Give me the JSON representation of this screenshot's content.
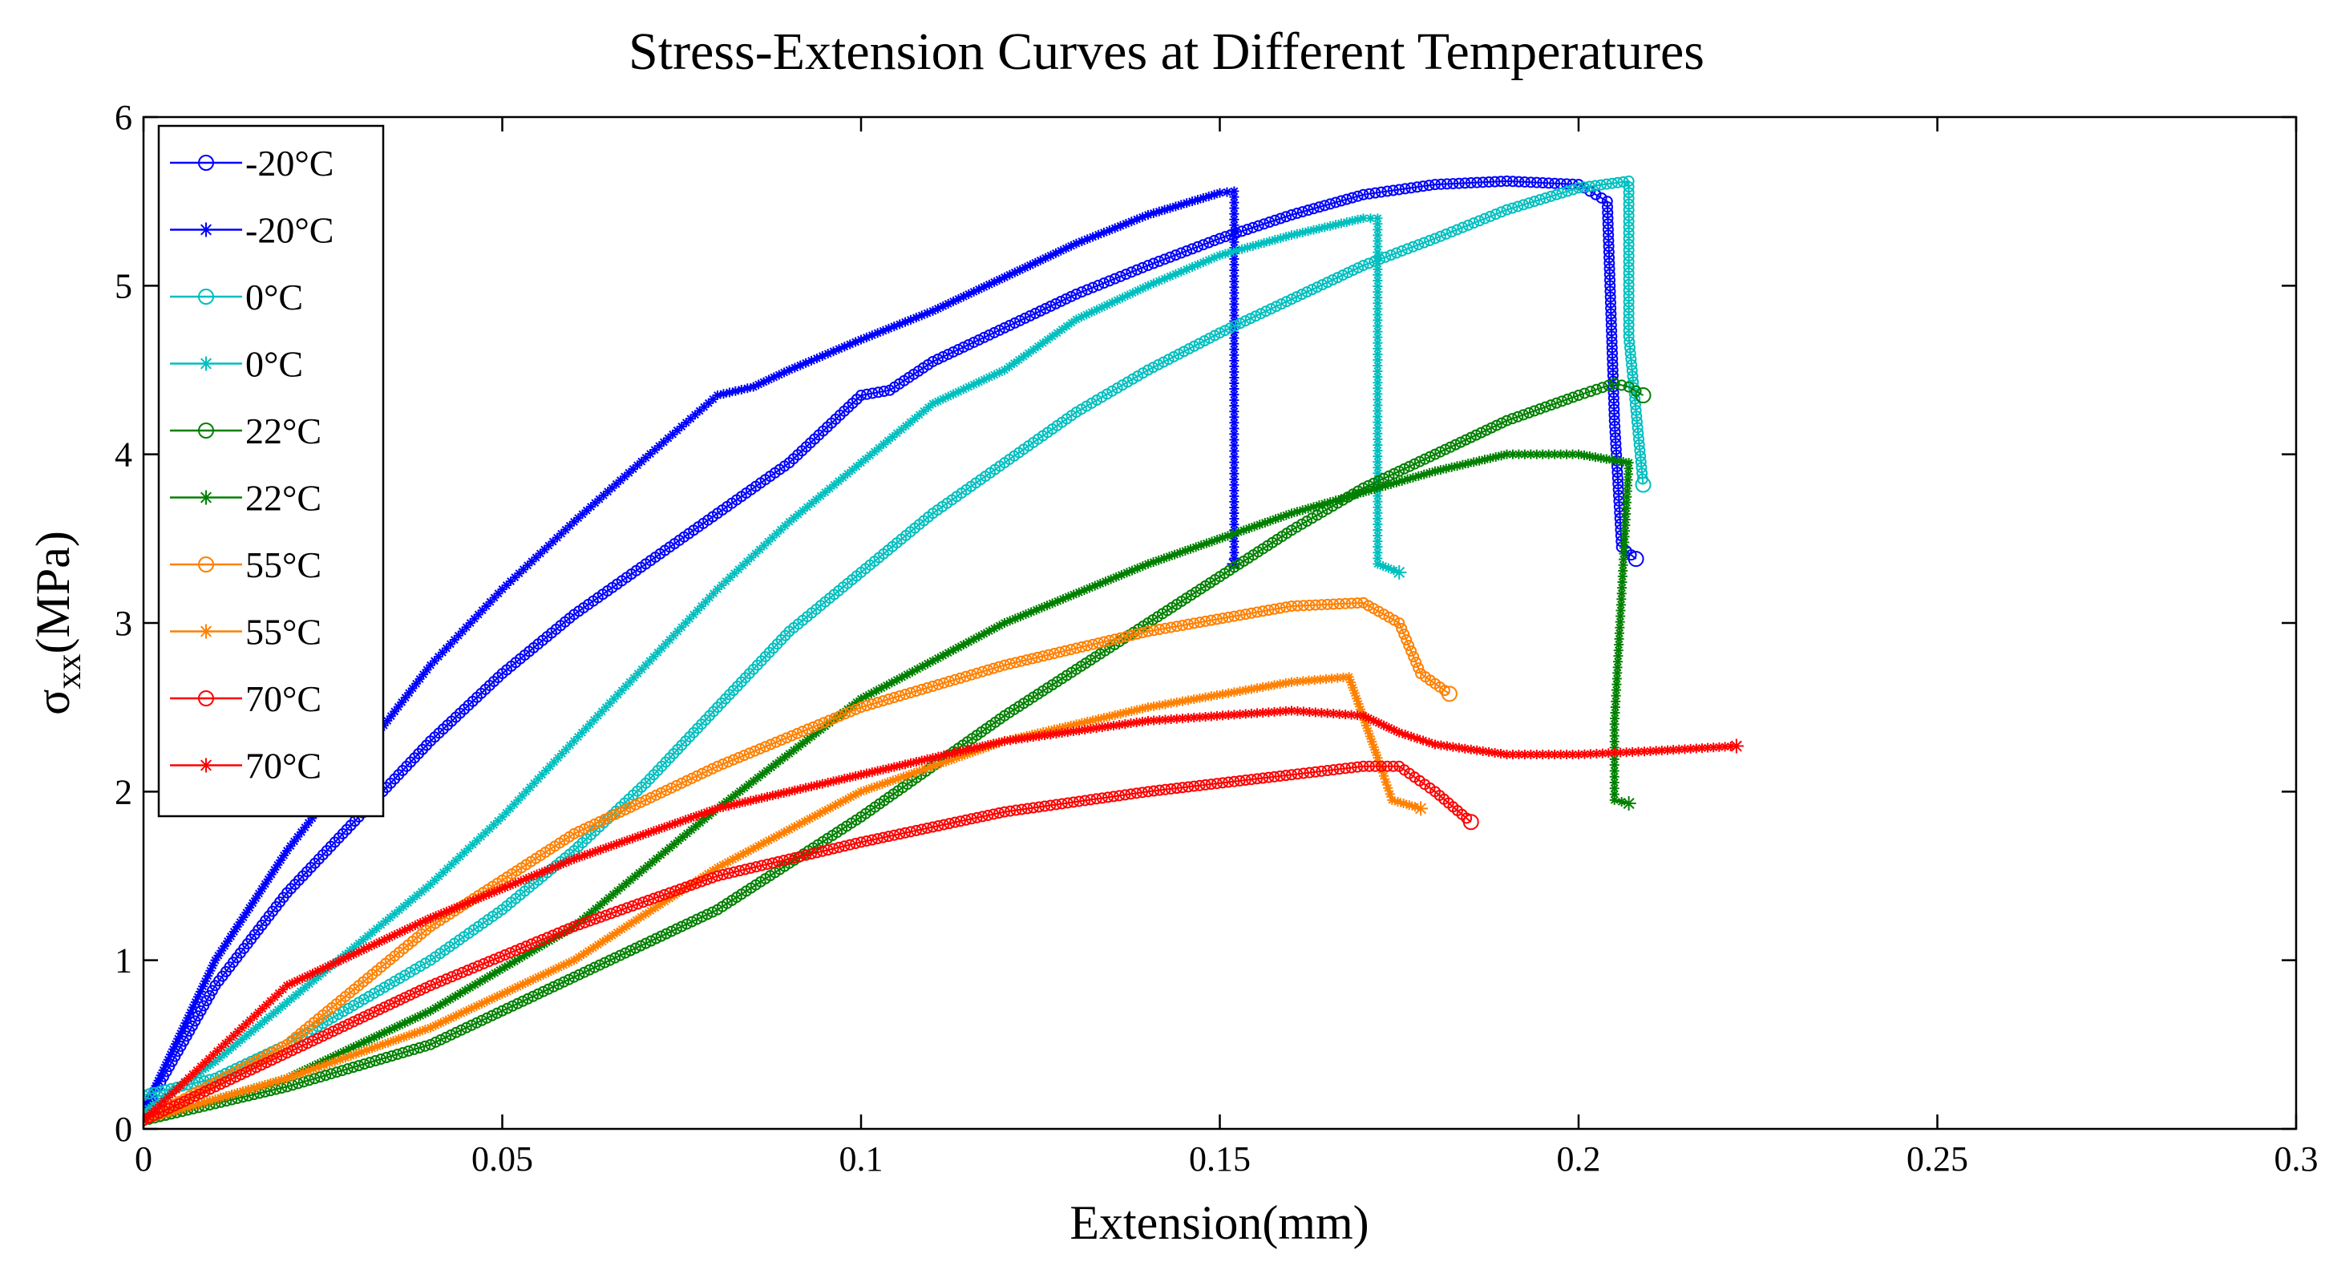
{
  "chart_data": {
    "type": "line",
    "title": "Stress-Extension Curves at Different Temperatures",
    "xlabel": "Extension(mm)",
    "ylabel": {
      "main": "σ",
      "sub": "xx",
      "unit": "(MPa)"
    },
    "xlim": [
      0,
      0.3
    ],
    "ylim": [
      0,
      6
    ],
    "xticks": [
      0,
      0.05,
      0.1,
      0.15,
      0.2,
      0.25,
      0.3
    ],
    "xtick_labels": [
      "0",
      "0.05",
      "0.1",
      "0.15",
      "0.2",
      "0.25",
      "0.3"
    ],
    "yticks": [
      0,
      1,
      2,
      3,
      4,
      5,
      6
    ],
    "ytick_labels": [
      "0",
      "1",
      "2",
      "3",
      "4",
      "5",
      "6"
    ],
    "grid": false,
    "legend_position": "top-left",
    "series": [
      {
        "name": "-20°C",
        "color": "#0000FF",
        "marker": "circle",
        "x": [
          0,
          0.01,
          0.02,
          0.03,
          0.04,
          0.05,
          0.06,
          0.07,
          0.08,
          0.09,
          0.1,
          0.104,
          0.11,
          0.12,
          0.13,
          0.14,
          0.15,
          0.16,
          0.17,
          0.18,
          0.19,
          0.2,
          0.204,
          0.205,
          0.206,
          0.208
        ],
        "y": [
          0.1,
          0.85,
          1.4,
          1.85,
          2.3,
          2.7,
          3.05,
          3.35,
          3.65,
          3.95,
          4.35,
          4.38,
          4.55,
          4.75,
          4.95,
          5.12,
          5.28,
          5.42,
          5.54,
          5.6,
          5.62,
          5.6,
          5.5,
          4.2,
          3.45,
          3.38
        ]
      },
      {
        "name": "-20°C",
        "color": "#0000FF",
        "marker": "star",
        "x": [
          0,
          0.01,
          0.02,
          0.03,
          0.04,
          0.05,
          0.06,
          0.07,
          0.08,
          0.085,
          0.09,
          0.1,
          0.11,
          0.12,
          0.13,
          0.14,
          0.15,
          0.152,
          0.152
        ],
        "y": [
          0.1,
          1.0,
          1.65,
          2.2,
          2.75,
          3.2,
          3.6,
          3.98,
          4.35,
          4.4,
          4.5,
          4.68,
          4.85,
          5.05,
          5.25,
          5.42,
          5.55,
          5.56,
          3.35
        ]
      },
      {
        "name": "0°C",
        "color": "#00BFBF",
        "marker": "circle",
        "x": [
          0,
          0.01,
          0.02,
          0.03,
          0.04,
          0.05,
          0.06,
          0.07,
          0.08,
          0.09,
          0.1,
          0.11,
          0.12,
          0.13,
          0.14,
          0.15,
          0.16,
          0.17,
          0.18,
          0.19,
          0.2,
          0.207,
          0.207,
          0.209
        ],
        "y": [
          0.2,
          0.3,
          0.5,
          0.75,
          1.0,
          1.3,
          1.65,
          2.05,
          2.5,
          2.95,
          3.3,
          3.65,
          3.95,
          4.25,
          4.5,
          4.72,
          4.92,
          5.12,
          5.28,
          5.45,
          5.58,
          5.62,
          4.7,
          3.82
        ]
      },
      {
        "name": "0°C",
        "color": "#00BFBF",
        "marker": "star",
        "x": [
          0,
          0.01,
          0.02,
          0.03,
          0.04,
          0.05,
          0.06,
          0.07,
          0.08,
          0.09,
          0.1,
          0.11,
          0.115,
          0.12,
          0.13,
          0.14,
          0.15,
          0.16,
          0.17,
          0.172,
          0.172,
          0.175
        ],
        "y": [
          0.1,
          0.4,
          0.75,
          1.1,
          1.45,
          1.85,
          2.3,
          2.75,
          3.2,
          3.6,
          3.95,
          4.3,
          4.4,
          4.5,
          4.8,
          5.0,
          5.18,
          5.3,
          5.4,
          5.4,
          3.35,
          3.3
        ]
      },
      {
        "name": "22°C",
        "color": "#008000",
        "marker": "circle",
        "x": [
          0,
          0.02,
          0.04,
          0.06,
          0.08,
          0.1,
          0.12,
          0.14,
          0.16,
          0.17,
          0.18,
          0.19,
          0.2,
          0.205,
          0.207,
          0.209
        ],
        "y": [
          0.05,
          0.25,
          0.5,
          0.9,
          1.3,
          1.85,
          2.45,
          3.0,
          3.55,
          3.8,
          4.0,
          4.2,
          4.35,
          4.42,
          4.4,
          4.35
        ]
      },
      {
        "name": "22°C",
        "color": "#008000",
        "marker": "star",
        "x": [
          0,
          0.02,
          0.04,
          0.06,
          0.08,
          0.1,
          0.12,
          0.14,
          0.16,
          0.18,
          0.19,
          0.2,
          0.207,
          0.205,
          0.205,
          0.207
        ],
        "y": [
          0.05,
          0.3,
          0.7,
          1.2,
          1.9,
          2.55,
          3.0,
          3.35,
          3.65,
          3.9,
          4.0,
          4.0,
          3.95,
          2.4,
          1.95,
          1.93
        ]
      },
      {
        "name": "55°C",
        "color": "#FF8000",
        "marker": "circle",
        "x": [
          0,
          0.02,
          0.03,
          0.04,
          0.06,
          0.08,
          0.1,
          0.12,
          0.14,
          0.16,
          0.17,
          0.175,
          0.178,
          0.182
        ],
        "y": [
          0.05,
          0.5,
          0.85,
          1.2,
          1.75,
          2.15,
          2.5,
          2.75,
          2.95,
          3.1,
          3.12,
          3.0,
          2.7,
          2.58
        ]
      },
      {
        "name": "55°C",
        "color": "#FF8000",
        "marker": "star",
        "x": [
          0,
          0.02,
          0.04,
          0.06,
          0.08,
          0.1,
          0.12,
          0.14,
          0.16,
          0.168,
          0.172,
          0.174,
          0.178
        ],
        "y": [
          0.05,
          0.3,
          0.6,
          1.0,
          1.55,
          2.0,
          2.3,
          2.5,
          2.65,
          2.68,
          2.2,
          1.95,
          1.9
        ]
      },
      {
        "name": "70°C",
        "color": "#FF0000",
        "marker": "circle",
        "x": [
          0,
          0.02,
          0.04,
          0.06,
          0.08,
          0.1,
          0.12,
          0.14,
          0.16,
          0.17,
          0.175,
          0.18,
          0.185
        ],
        "y": [
          0.05,
          0.45,
          0.85,
          1.2,
          1.5,
          1.7,
          1.88,
          2.0,
          2.1,
          2.15,
          2.15,
          2.0,
          1.82
        ]
      },
      {
        "name": "70°C",
        "color": "#FF0000",
        "marker": "star",
        "x": [
          0,
          0.02,
          0.04,
          0.06,
          0.08,
          0.1,
          0.12,
          0.14,
          0.16,
          0.17,
          0.175,
          0.18,
          0.19,
          0.2,
          0.21,
          0.222
        ],
        "y": [
          0.05,
          0.85,
          1.25,
          1.6,
          1.9,
          2.1,
          2.3,
          2.42,
          2.48,
          2.45,
          2.35,
          2.28,
          2.22,
          2.22,
          2.24,
          2.27
        ]
      }
    ]
  }
}
